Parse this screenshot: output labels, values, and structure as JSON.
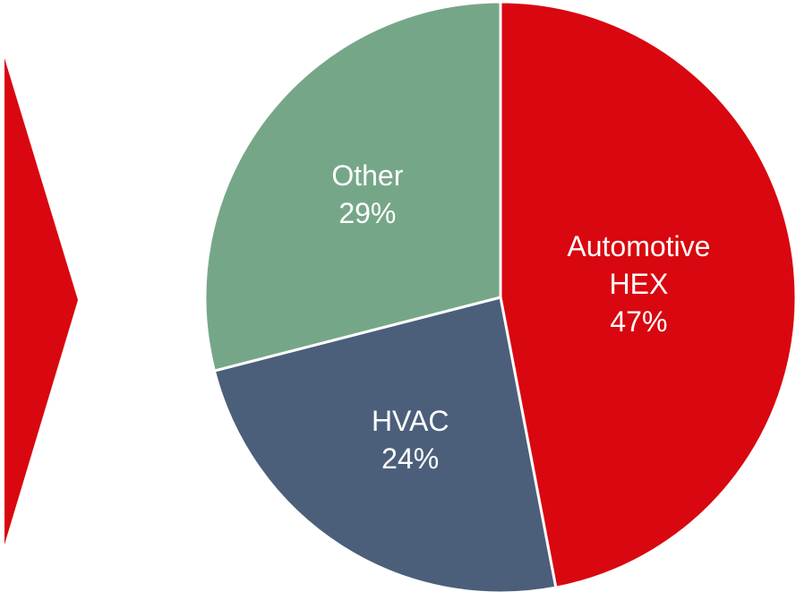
{
  "chart_data": {
    "type": "pie",
    "categories": [
      "Automotive HEX",
      "HVAC",
      "Other"
    ],
    "values": [
      47,
      24,
      29
    ],
    "value_labels": [
      "47%",
      "24%",
      "29%"
    ],
    "colors": [
      "#d9070f",
      "#4b5f7a",
      "#76a688"
    ]
  }
}
